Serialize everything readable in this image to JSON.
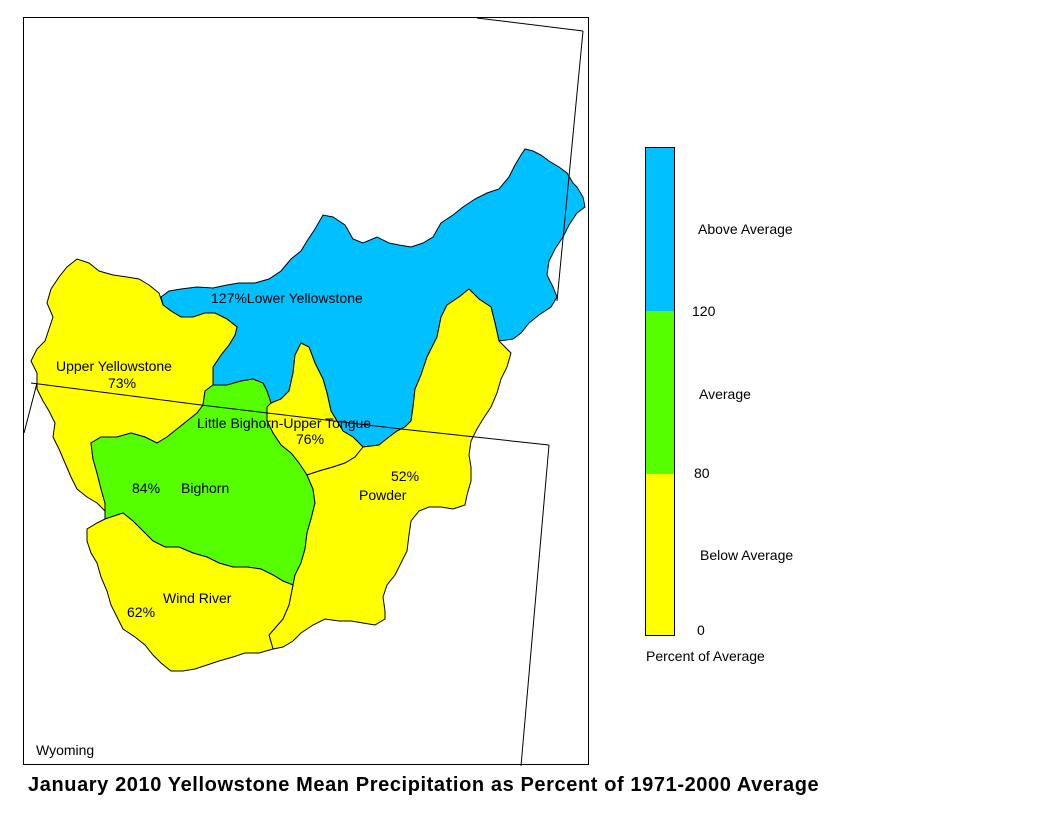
{
  "title": "January 2010 Yellowstone Mean Precipitation as Percent of 1971-2000 Average",
  "map": {
    "state_label": "Wyoming",
    "basins": [
      {
        "name": "Lower Yellowstone",
        "percent": "127%",
        "category": "above",
        "label": "127%Lower Yellowstone"
      },
      {
        "name": "Upper Yellowstone",
        "percent": "73%",
        "category": "below"
      },
      {
        "name": "Little Bighorn-Upper Tongue",
        "percent": "76%",
        "category": "below"
      },
      {
        "name": "Bighorn",
        "percent": "84%",
        "category": "average"
      },
      {
        "name": "Powder",
        "percent": "52%",
        "category": "below"
      },
      {
        "name": "Wind River",
        "percent": "62%",
        "category": "below"
      }
    ]
  },
  "legend": {
    "title": "Percent of Average",
    "classes": [
      {
        "label": "Above Average",
        "color": "#00c0ff"
      },
      {
        "label": "Average",
        "color": "#55ff00"
      },
      {
        "label": "Below Average",
        "color": "#ffff00"
      }
    ],
    "breaks": [
      "120",
      "80",
      "0"
    ]
  },
  "colors": {
    "above": "#00c0ff",
    "average": "#55ff00",
    "below": "#ffff00",
    "outline": "#000000"
  }
}
